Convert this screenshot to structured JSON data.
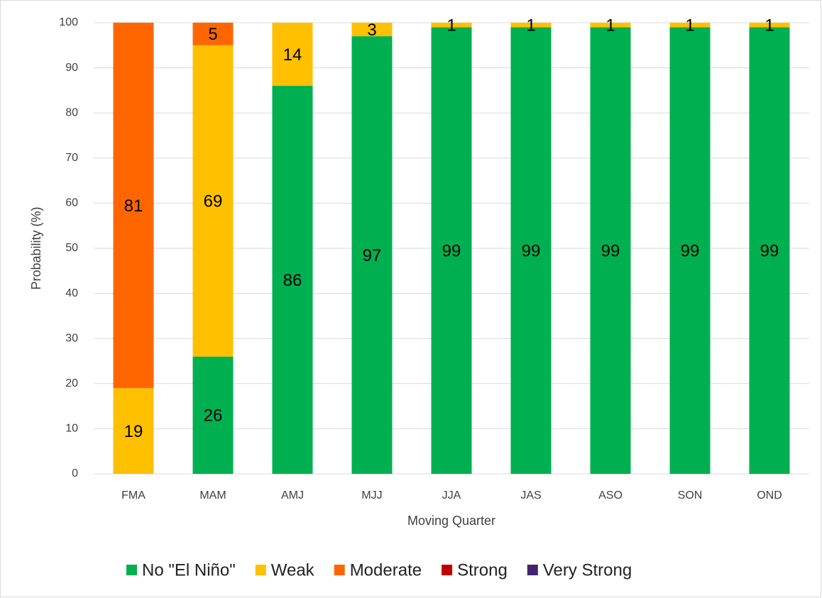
{
  "chart_data": {
    "type": "stacked_bar",
    "x_label": "Moving Quarter",
    "y_label": "Probability (%)",
    "categories": [
      "FMA",
      "MAM",
      "AMJ",
      "MJJ",
      "JJA",
      "JAS",
      "ASO",
      "SON",
      "OND"
    ],
    "series": [
      {
        "name": "No \"El Niño\"",
        "color": "#00b050",
        "values": [
          0,
          26,
          86,
          97,
          99,
          99,
          99,
          99,
          99
        ]
      },
      {
        "name": "Weak",
        "color": "#ffc000",
        "values": [
          19,
          69,
          14,
          3,
          1,
          1,
          1,
          1,
          1
        ]
      },
      {
        "name": "Moderate",
        "color": "#ff6600",
        "values": [
          81,
          5,
          0,
          0,
          0,
          0,
          0,
          0,
          0
        ]
      },
      {
        "name": "Strong",
        "color": "#c00000",
        "values": [
          0,
          0,
          0,
          0,
          0,
          0,
          0,
          0,
          0
        ]
      },
      {
        "name": "Very Strong",
        "color": "#44246e",
        "values": [
          0,
          0,
          0,
          0,
          0,
          0,
          0,
          0,
          0
        ]
      }
    ],
    "ylim": [
      0,
      100
    ],
    "yticks": [
      0,
      10,
      20,
      30,
      40,
      50,
      60,
      70,
      80,
      90,
      100
    ],
    "grid": true,
    "legend": "bottom"
  }
}
